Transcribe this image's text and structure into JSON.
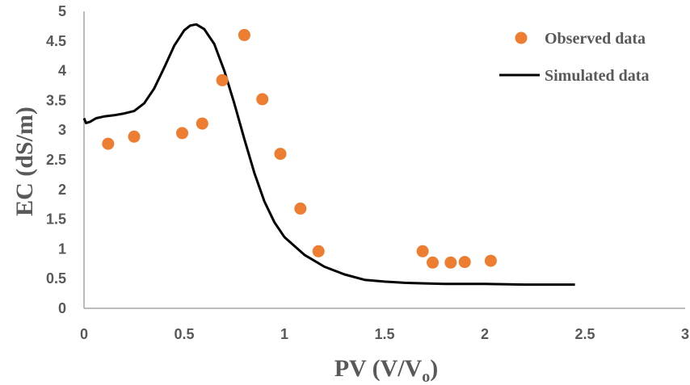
{
  "chart_data": {
    "type": "scatter",
    "xlabel": "PV (V/V",
    "xlabel_subscript": "o",
    "xlabel_close": ")",
    "ylabel": "EC (dS/m)",
    "xlim": [
      0,
      3
    ],
    "ylim": [
      0,
      5
    ],
    "x_ticks": [
      "0",
      "0.5",
      "1",
      "1.5",
      "2",
      "2.5",
      "3"
    ],
    "y_ticks": [
      "0",
      "0.5",
      "1",
      "1.5",
      "2",
      "2.5",
      "3",
      "3.5",
      "4",
      "4.5",
      "5"
    ],
    "grid": false,
    "legend_position": "top-right",
    "series": [
      {
        "name": "Observed data",
        "kind": "scatter",
        "color": "#ED7D31",
        "points": [
          [
            0.12,
            2.77
          ],
          [
            0.25,
            2.89
          ],
          [
            0.49,
            2.95
          ],
          [
            0.59,
            3.11
          ],
          [
            0.69,
            3.84
          ],
          [
            0.8,
            4.6
          ],
          [
            0.89,
            3.52
          ],
          [
            0.98,
            2.6
          ],
          [
            1.08,
            1.68
          ],
          [
            1.17,
            0.96
          ],
          [
            1.69,
            0.96
          ],
          [
            1.74,
            0.77
          ],
          [
            1.83,
            0.77
          ],
          [
            1.9,
            0.78
          ],
          [
            2.03,
            0.8
          ]
        ]
      },
      {
        "name": "Simulated data",
        "kind": "line",
        "color": "#000000",
        "points": [
          [
            0.0,
            3.2
          ],
          [
            0.01,
            3.12
          ],
          [
            0.03,
            3.14
          ],
          [
            0.06,
            3.2
          ],
          [
            0.1,
            3.23
          ],
          [
            0.15,
            3.25
          ],
          [
            0.2,
            3.28
          ],
          [
            0.25,
            3.32
          ],
          [
            0.3,
            3.45
          ],
          [
            0.35,
            3.7
          ],
          [
            0.4,
            4.05
          ],
          [
            0.45,
            4.42
          ],
          [
            0.5,
            4.68
          ],
          [
            0.53,
            4.76
          ],
          [
            0.56,
            4.78
          ],
          [
            0.6,
            4.7
          ],
          [
            0.65,
            4.45
          ],
          [
            0.7,
            4.0
          ],
          [
            0.75,
            3.45
          ],
          [
            0.8,
            2.85
          ],
          [
            0.85,
            2.28
          ],
          [
            0.9,
            1.8
          ],
          [
            0.95,
            1.45
          ],
          [
            1.0,
            1.2
          ],
          [
            1.1,
            0.9
          ],
          [
            1.2,
            0.7
          ],
          [
            1.3,
            0.57
          ],
          [
            1.4,
            0.48
          ],
          [
            1.5,
            0.45
          ],
          [
            1.6,
            0.43
          ],
          [
            1.7,
            0.42
          ],
          [
            1.8,
            0.41
          ],
          [
            2.0,
            0.41
          ],
          [
            2.2,
            0.4
          ],
          [
            2.45,
            0.4
          ]
        ]
      }
    ]
  }
}
